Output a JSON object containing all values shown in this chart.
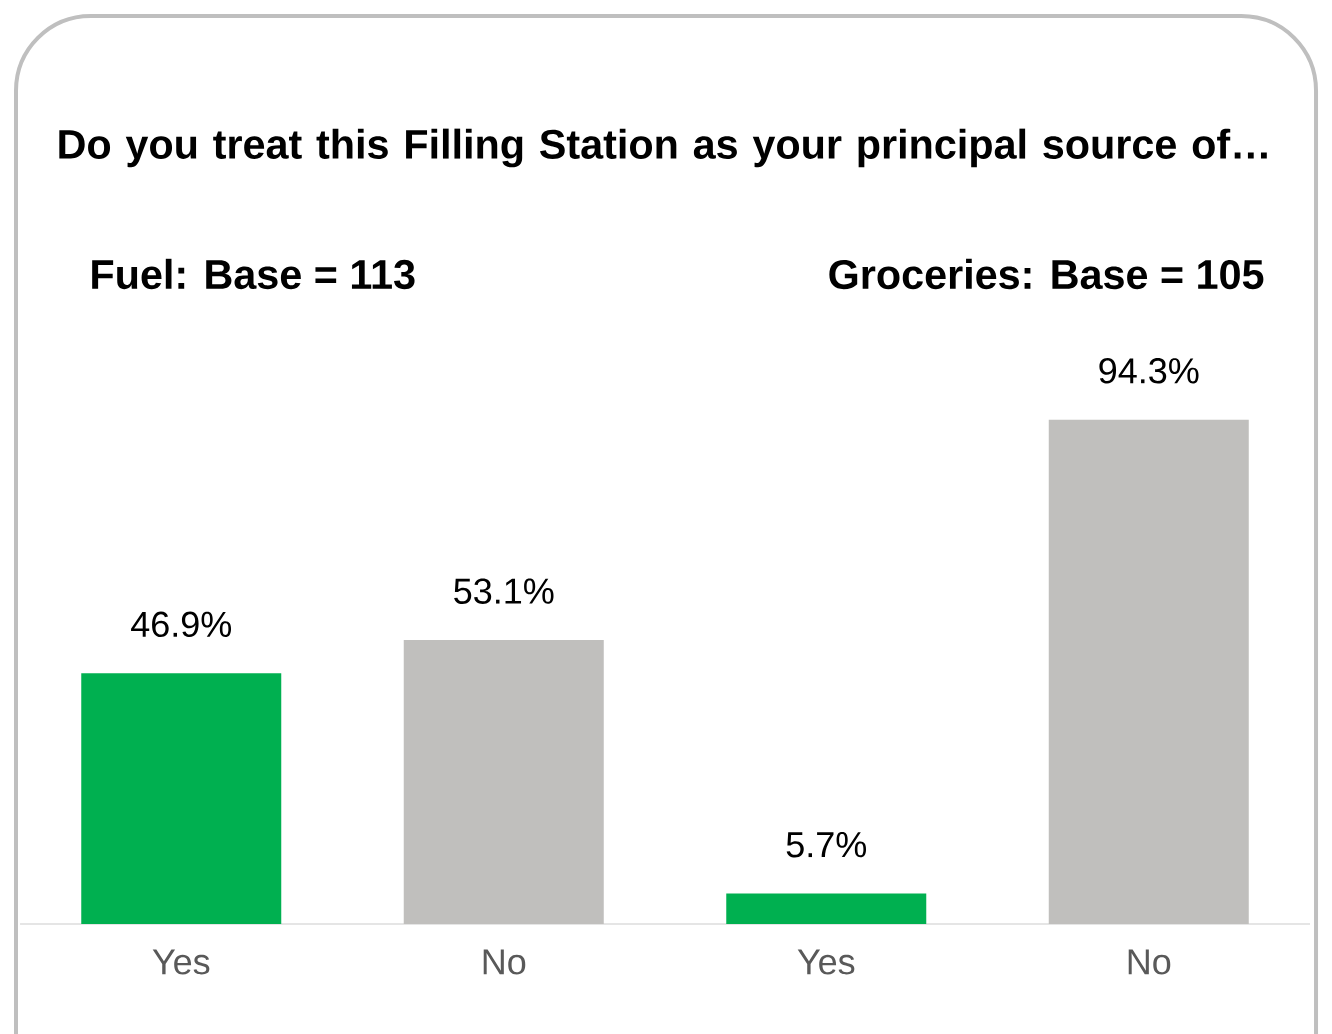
{
  "chart_data": {
    "type": "bar",
    "title": "Do you treat this Filling Station as your principal source of…",
    "annotations": [
      "Fuel: Base = 113",
      "Groceries: Base = 105"
    ],
    "categories": [
      "Yes",
      "No",
      "Yes",
      "No"
    ],
    "values": [
      46.9,
      53.1,
      5.7,
      94.3
    ],
    "value_labels": [
      "46.9%",
      "53.1%",
      "5.7%",
      "94.3%"
    ],
    "colors": [
      "#00b050",
      "#c0bfbd",
      "#00b050",
      "#c0bfbd"
    ]
  }
}
